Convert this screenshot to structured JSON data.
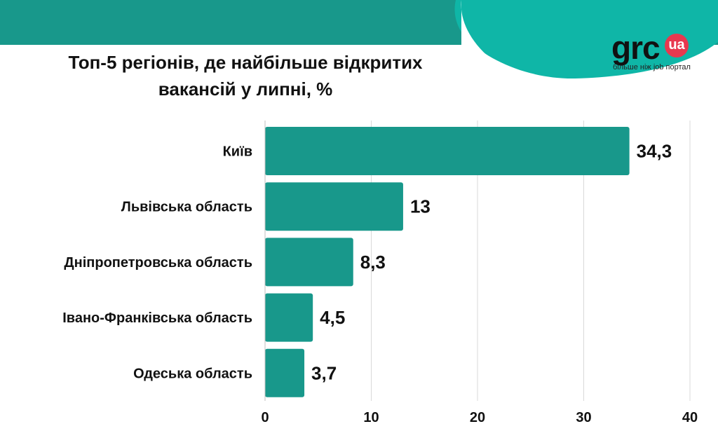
{
  "title_lines": [
    "Топ-5 регіонів, де найбільше відкритих",
    "вакансій у липні, %"
  ],
  "logo": {
    "word": "grc",
    "badge": "ua",
    "tagline": "більше ніж job портал"
  },
  "colors": {
    "bar": "#18988b",
    "band": "#18988b",
    "band_light": "#0fb6a7",
    "grid": "#d9d9d9",
    "logo_badge": "#e8384f"
  },
  "chart_data": {
    "type": "bar",
    "orientation": "horizontal",
    "title": "Топ-5 регіонів, де найбільше відкритих вакансій у липні, %",
    "categories": [
      "Київ",
      "Львівська область",
      "Дніпропетровська область",
      "Івано-Франківська область",
      "Одеська область"
    ],
    "values": [
      34.3,
      13,
      8.3,
      4.5,
      3.7
    ],
    "value_labels": [
      "34,3",
      "13",
      "8,3",
      "4,5",
      "3,7"
    ],
    "xlim": [
      0,
      40
    ],
    "x_ticks": [
      0,
      10,
      20,
      30,
      40
    ],
    "grid": true,
    "xlabel": "",
    "ylabel": ""
  }
}
